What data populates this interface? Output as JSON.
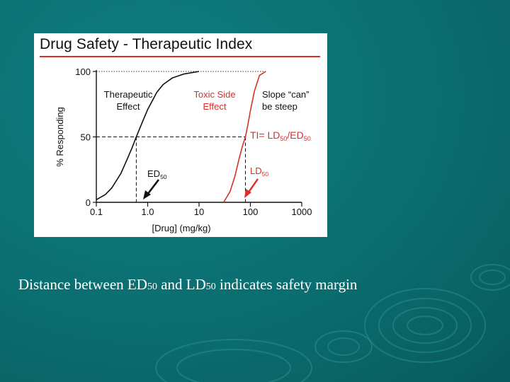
{
  "chart_data": {
    "type": "line",
    "title": "Drug Safety - Therapeutic Index",
    "xlabel": "[Drug] (mg/kg)",
    "ylabel": "% Responding",
    "x_scale": "log",
    "xlim": [
      0.1,
      1000
    ],
    "ylim": [
      0,
      100
    ],
    "x_ticks": [
      "0.1",
      "1.0",
      "10",
      "100",
      "1000"
    ],
    "y_ticks": [
      "0",
      "50",
      "100"
    ],
    "series": [
      {
        "name": "Therapeutic Effect",
        "color": "#111111",
        "x": [
          0.1,
          0.15,
          0.2,
          0.3,
          0.4,
          0.5,
          0.6,
          0.8,
          1.0,
          1.5,
          2,
          3,
          5,
          10
        ],
        "y": [
          2,
          6,
          11,
          22,
          33,
          42,
          50,
          62,
          71,
          84,
          90,
          95,
          98,
          100
        ]
      },
      {
        "name": "Toxic Side Effect",
        "color": "#d9302a",
        "x": [
          30,
          40,
          50,
          60,
          70,
          80,
          90,
          100,
          120,
          150,
          200
        ],
        "y": [
          0,
          8,
          20,
          33,
          43,
          50,
          60,
          70,
          85,
          97,
          100
        ]
      }
    ],
    "annotations": {
      "therapeutic_label": [
        "Therapeutic",
        "Effect"
      ],
      "toxic_label": [
        "Toxic Side",
        "Effect"
      ],
      "slope_note": [
        "Slope “can”",
        "be steep"
      ],
      "ti_main": "TI= LD",
      "ti_sub1": "50",
      "ti_div": "/ED",
      "ti_sub2": "50",
      "ed_main": "ED",
      "ed_sub": "50",
      "ld_main": "LD",
      "ld_sub": "50"
    },
    "ed50": 0.6,
    "ld50": 80,
    "grid": false
  },
  "caption": {
    "part1": "Distance between ED",
    "sub1": "50",
    "part2": " and LD",
    "sub2": "50",
    "part3": " indicates safety margin"
  },
  "colors": {
    "accent": "#d9302a",
    "background": "#0b6e70"
  }
}
